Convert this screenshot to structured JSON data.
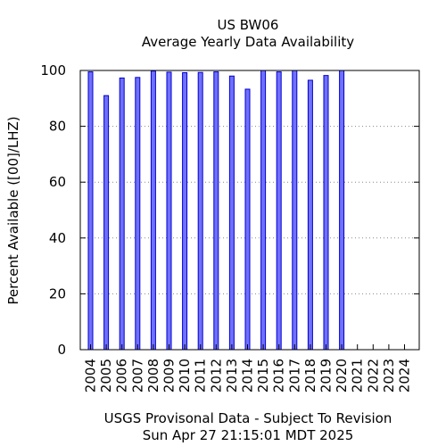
{
  "chart_data": {
    "type": "bar",
    "title": "US BW06",
    "subtitle": "Average Yearly Data Availability",
    "ylabel": "Percent Available ([00]/LHZ)",
    "xlabel": "USGS Provisonal Data - Subject To Revision",
    "timestamp": "Sun Apr 27 21:15:01 MDT 2025",
    "ylim": [
      0,
      100
    ],
    "yticks": [
      "0",
      "20",
      "40",
      "60",
      "80",
      "100"
    ],
    "grid": "horizontal-dotted",
    "categories": [
      "2004",
      "2005",
      "2006",
      "2007",
      "2008",
      "2009",
      "2010",
      "2011",
      "2012",
      "2013",
      "2014",
      "2015",
      "2016",
      "2017",
      "2018",
      "2019",
      "2020",
      "2021",
      "2022",
      "2023",
      "2024"
    ],
    "values": [
      99.5,
      91,
      97.3,
      97.5,
      99.8,
      99.4,
      99.2,
      99.3,
      99.5,
      98,
      93.3,
      100,
      99.5,
      100,
      96.5,
      98.2,
      100,
      null,
      null,
      null,
      null
    ],
    "bar_color": "#7070ff",
    "bar_edge": "#0000cc"
  }
}
